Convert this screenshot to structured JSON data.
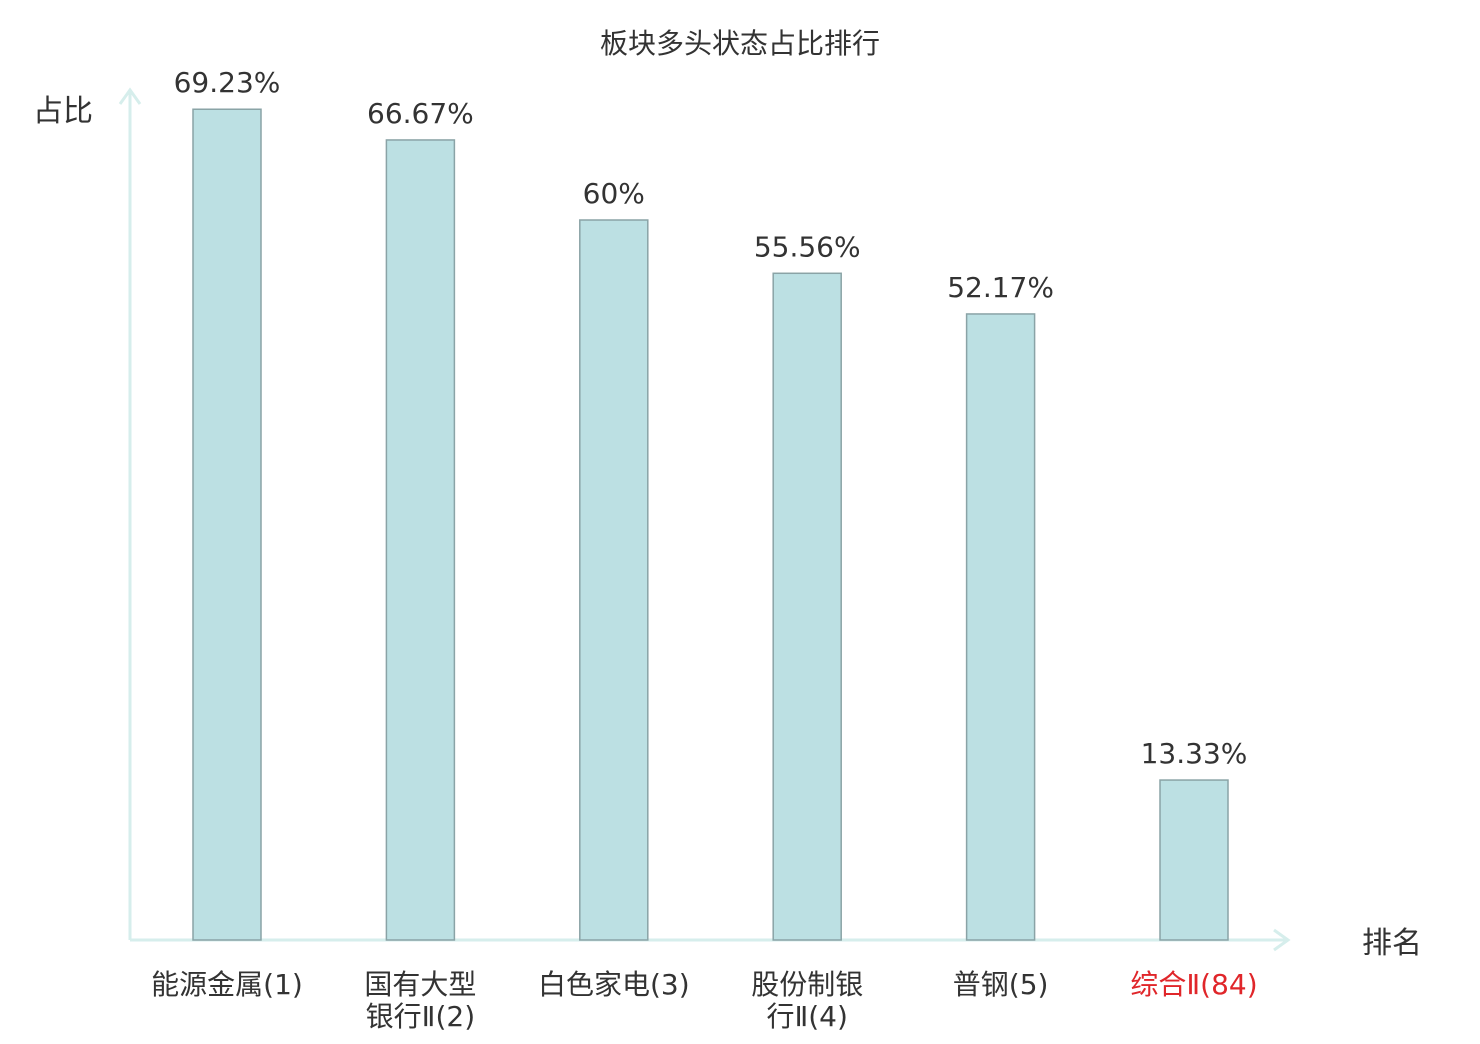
{
  "chart_data": {
    "type": "bar",
    "title": "板块多头状态占比排行",
    "ylabel": "占比",
    "xlabel": "排名",
    "categories": [
      {
        "name": "能源金属",
        "rank": "(1)",
        "highlight": false
      },
      {
        "name": "国有大型",
        "name2": "银行Ⅱ",
        "rank": "(2)",
        "highlight": false
      },
      {
        "name": "白色家电",
        "rank": "(3)",
        "highlight": false
      },
      {
        "name": "股份制银",
        "name2": "行Ⅱ",
        "rank": "(4)",
        "highlight": false
      },
      {
        "name": "普钢",
        "rank": "(5)",
        "highlight": false
      },
      {
        "name": "综合Ⅱ",
        "rank": "(84)",
        "highlight": true
      }
    ],
    "values": [
      69.23,
      66.67,
      60,
      55.56,
      52.17,
      13.33
    ],
    "value_labels": [
      "69.23%",
      "66.67%",
      "60%",
      "55.56%",
      "52.17%",
      "13.33%"
    ],
    "ylim": [
      0,
      70
    ],
    "grid": false,
    "colors": {
      "bar_fill": "#bce0e3",
      "bar_stroke": "#8aa3a6",
      "axis": "#d6eeec",
      "text": "#333333",
      "highlight": "#e0262a"
    }
  }
}
